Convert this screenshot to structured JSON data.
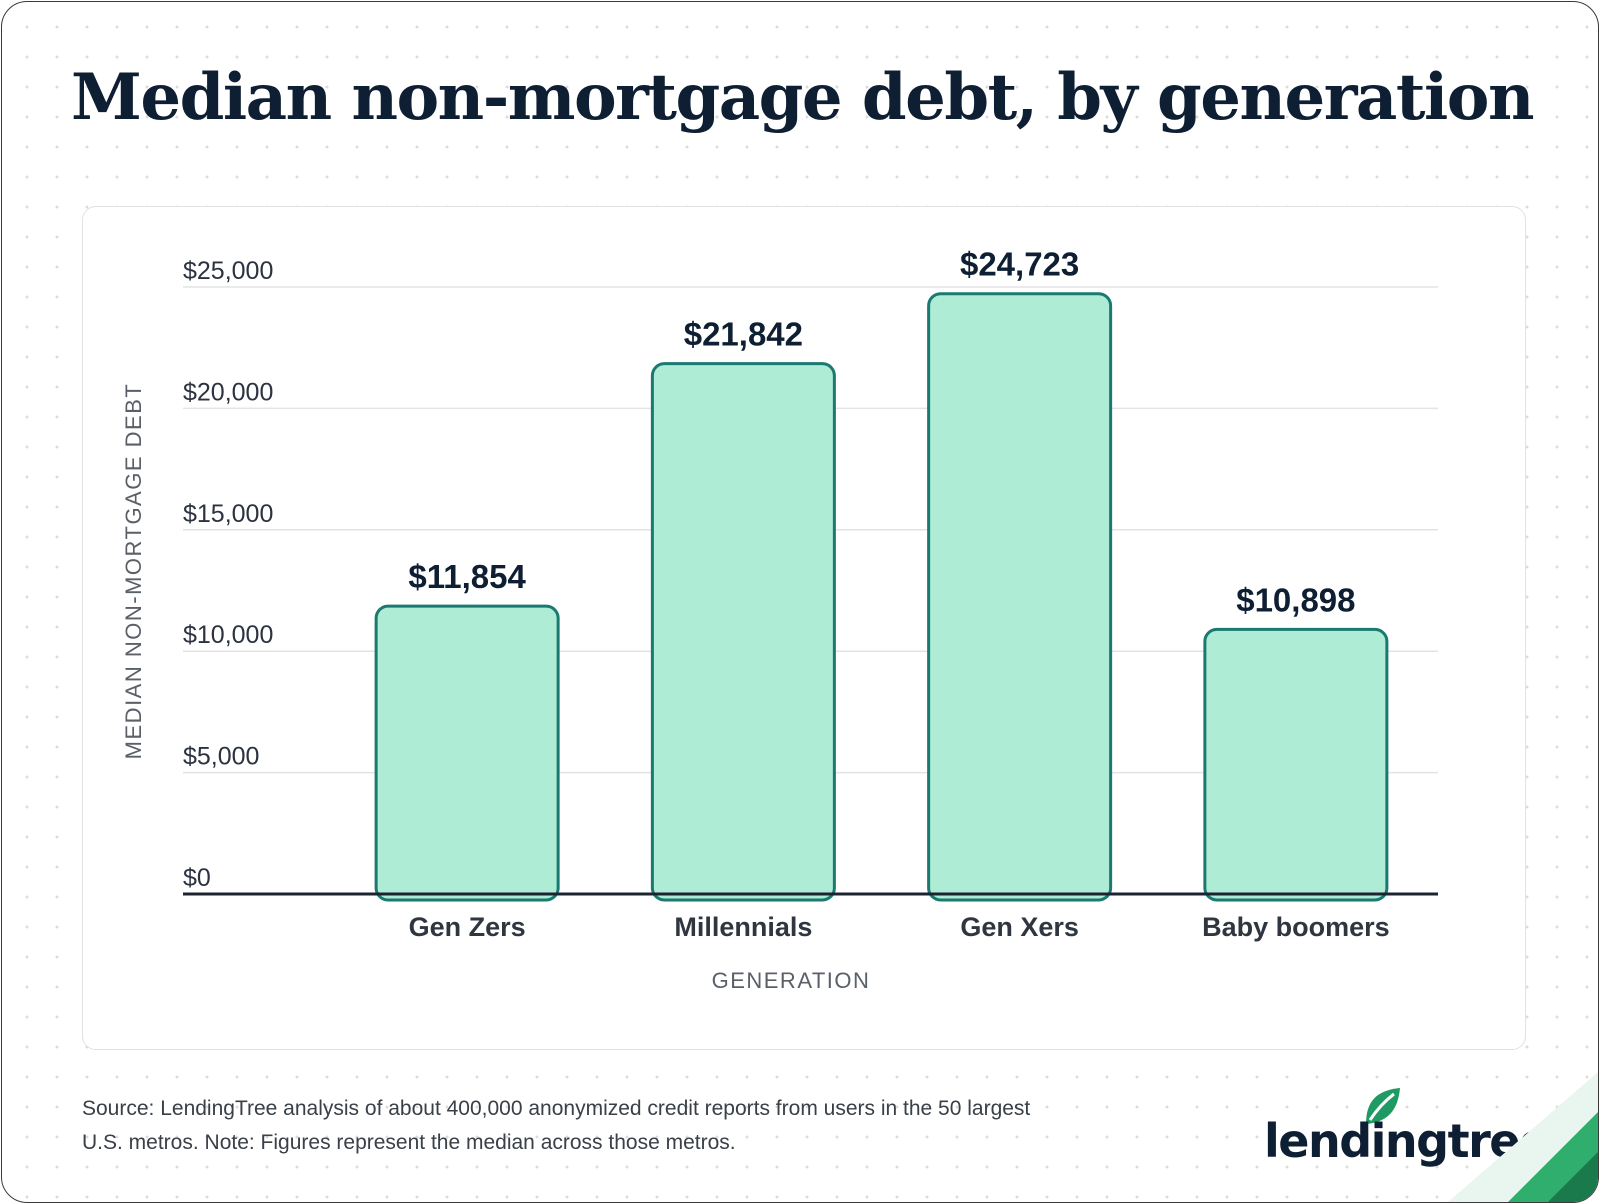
{
  "title": "Median non-mortgage debt, by generation",
  "chart_data": {
    "type": "bar",
    "categories": [
      "Gen Zers",
      "Millennials",
      "Gen Xers",
      "Baby boomers"
    ],
    "values": [
      11854,
      21842,
      24723,
      10898
    ],
    "value_labels": [
      "$11,854",
      "$21,842",
      "$24,723",
      "$10,898"
    ],
    "xlabel": "GENERATION",
    "ylabel": "MEDIAN NON-MORTGAGE DEBT",
    "ylim": [
      0,
      25000
    ],
    "yticks": [
      0,
      5000,
      10000,
      15000,
      20000,
      25000
    ],
    "ytick_labels": [
      "$0",
      "$5,000",
      "$10,000",
      "$15,000",
      "$20,000",
      "$25,000"
    ],
    "grid": true,
    "legend": "none",
    "colors": {
      "bar_fill": "#aeecd5",
      "bar_stroke": "#1a7a72",
      "baseline": "#1c2430",
      "grid": "#e3e3e3"
    }
  },
  "footer": {
    "source_line1": "Source: LendingTree analysis of about 400,000 anonymized credit reports from users in the 50 largest",
    "source_line2": "U.S. metros. Note: Figures represent the median across those metros."
  },
  "logo": {
    "text": "lendingtree",
    "registered": "®",
    "leaf_color": "#1f9a63"
  }
}
